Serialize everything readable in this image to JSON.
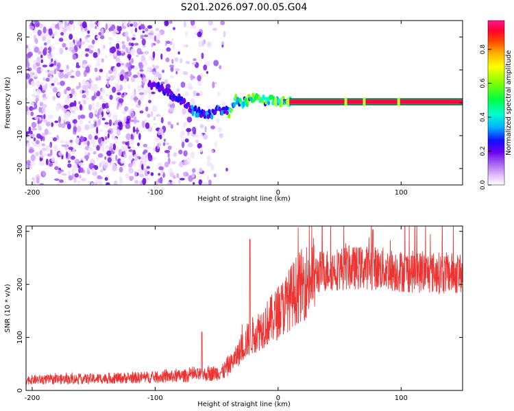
{
  "title": "S201.2026.097.00.05.G04",
  "chart_data": [
    {
      "type": "heatmap",
      "xlabel": "Height of straight line (km)",
      "ylabel": "Frequency (Hz)",
      "xlim": [
        -205,
        150
      ],
      "ylim": [
        -25,
        25
      ],
      "xticks": [
        -200,
        -100,
        0,
        100
      ],
      "yticks": [
        -20,
        -10,
        0,
        10,
        20
      ],
      "track": {
        "x": [
          -100,
          -90,
          -80,
          -70,
          -60,
          -52,
          -45,
          -40,
          -35,
          -30,
          -25,
          -20,
          -15,
          -10,
          -5,
          0,
          5,
          10,
          150
        ],
        "y": [
          5,
          3,
          1,
          -2,
          -4,
          -3,
          -2,
          -3,
          1,
          0,
          0.5,
          1.5,
          1.5,
          0.5,
          1,
          0,
          0.5,
          0.3,
          0.3
        ]
      },
      "colorbar": {
        "label": "Normalized spectral amplitude",
        "range": [
          0,
          0.97
        ],
        "ticks": [
          0.0,
          0.2,
          0.4,
          0.6,
          0.8
        ],
        "tick_labels": [
          "0.0",
          "0.2",
          "0.4",
          "0.6",
          "0.8"
        ]
      }
    },
    {
      "type": "line",
      "xlabel": "Height of straight line (km)",
      "ylabel": "SNR (10 * v/v)",
      "xlim": [
        -205,
        150
      ],
      "ylim": [
        0,
        310
      ],
      "xticks": [
        -200,
        -100,
        0,
        100
      ],
      "yticks": [
        0,
        100,
        200,
        300
      ],
      "color": "#ee3333",
      "envelope": {
        "x": [
          -205,
          -150,
          -100,
          -80,
          -60,
          -45,
          -35,
          -25,
          -15,
          -5,
          5,
          15,
          25,
          35,
          50,
          75,
          100,
          125,
          150
        ],
        "y": [
          20,
          22,
          25,
          27,
          30,
          35,
          60,
          95,
          115,
          135,
          160,
          190,
          210,
          225,
          230,
          232,
          225,
          222,
          220
        ]
      },
      "spikes": [
        {
          "x": -23,
          "y": 285
        },
        {
          "x": -62,
          "y": 110
        },
        {
          "x": 77,
          "y": 303
        }
      ]
    }
  ]
}
